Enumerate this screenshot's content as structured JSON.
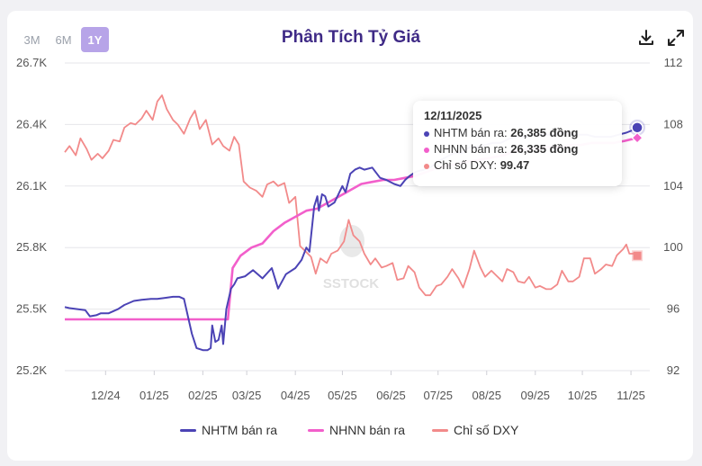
{
  "colors": {
    "nhtm": "#4b43b5",
    "nhnn": "#f25fcb",
    "dxy": "#f28a8a",
    "title": "#3f2a86",
    "axis": "#555555"
  },
  "range_buttons": [
    {
      "label": "3M",
      "active": false
    },
    {
      "label": "6M",
      "active": false
    },
    {
      "label": "1Y",
      "active": true
    }
  ],
  "toolbar": {
    "download_icon": "download-icon",
    "fullscreen_icon": "expand-icon"
  },
  "tooltip": {
    "date": "12/11/2025",
    "rows": [
      {
        "label": "NHTM bán ra: ",
        "value": "26,385 đồng"
      },
      {
        "label": "NHNN bán ra: ",
        "value": "26,335 đồng"
      },
      {
        "label": "Chỉ số DXY: ",
        "value": "99.47"
      }
    ]
  },
  "watermark": "SSTOCK",
  "chart_data": {
    "type": "line",
    "title": "Phân Tích Tỷ Giá",
    "x_tick_labels": [
      "12/24",
      "01/25",
      "02/25",
      "03/25",
      "04/25",
      "05/25",
      "06/25",
      "07/25",
      "08/25",
      "09/25",
      "10/25",
      "11/25"
    ],
    "y_left": {
      "ticks": [
        "25.2K",
        "25.5K",
        "25.8K",
        "26.1K",
        "26.4K",
        "26.7K"
      ],
      "range": [
        25200,
        26700
      ]
    },
    "y_right": {
      "ticks": [
        "92",
        "96",
        "100",
        "104",
        "108",
        "112"
      ],
      "range": [
        92,
        112
      ]
    },
    "legend_position": "bottom",
    "x_axis": {
      "start": "2024-11-12",
      "end": "2025-11-20"
    },
    "series": [
      {
        "name": "NHTM bán ra",
        "axis": "left",
        "points": [
          [
            "2024-11-12",
            25510
          ],
          [
            "2024-11-15",
            25505
          ],
          [
            "2024-11-20",
            25500
          ],
          [
            "2024-11-25",
            25495
          ],
          [
            "2024-11-28",
            25465
          ],
          [
            "2024-12-02",
            25470
          ],
          [
            "2024-12-05",
            25480
          ],
          [
            "2024-12-10",
            25480
          ],
          [
            "2024-12-16",
            25500
          ],
          [
            "2024-12-20",
            25520
          ],
          [
            "2024-12-26",
            25540
          ],
          [
            "2024-12-31",
            25545
          ],
          [
            "2025-01-06",
            25550
          ],
          [
            "2025-01-10",
            25550
          ],
          [
            "2025-01-15",
            25555
          ],
          [
            "2025-01-20",
            25560
          ],
          [
            "2025-01-24",
            25560
          ],
          [
            "2025-01-27",
            25550
          ],
          [
            "2025-02-01",
            25380
          ],
          [
            "2025-02-04",
            25310
          ],
          [
            "2025-02-08",
            25300
          ],
          [
            "2025-02-11",
            25300
          ],
          [
            "2025-02-13",
            25310
          ],
          [
            "2025-02-14",
            25420
          ],
          [
            "2025-02-16",
            25340
          ],
          [
            "2025-02-18",
            25350
          ],
          [
            "2025-02-20",
            25420
          ],
          [
            "2025-02-21",
            25330
          ],
          [
            "2025-02-23",
            25500
          ],
          [
            "2025-02-26",
            25600
          ],
          [
            "2025-02-28",
            25620
          ],
          [
            "2025-03-02",
            25650
          ],
          [
            "2025-03-07",
            25660
          ],
          [
            "2025-03-12",
            25690
          ],
          [
            "2025-03-18",
            25650
          ],
          [
            "2025-03-24",
            25700
          ],
          [
            "2025-03-28",
            25600
          ],
          [
            "2025-04-02",
            25670
          ],
          [
            "2025-04-08",
            25700
          ],
          [
            "2025-04-12",
            25740
          ],
          [
            "2025-04-15",
            25800
          ],
          [
            "2025-04-17",
            25780
          ],
          [
            "2025-04-20",
            26000
          ],
          [
            "2025-04-22",
            26050
          ],
          [
            "2025-04-23",
            25980
          ],
          [
            "2025-04-25",
            26060
          ],
          [
            "2025-04-27",
            26050
          ],
          [
            "2025-04-29",
            26000
          ],
          [
            "2025-05-03",
            26020
          ],
          [
            "2025-05-08",
            26100
          ],
          [
            "2025-05-10",
            26070
          ],
          [
            "2025-05-13",
            26160
          ],
          [
            "2025-05-16",
            26180
          ],
          [
            "2025-05-19",
            26190
          ],
          [
            "2025-05-22",
            26180
          ],
          [
            "2025-05-27",
            26190
          ],
          [
            "2025-06-01",
            26140
          ],
          [
            "2025-06-05",
            26130
          ],
          [
            "2025-06-10",
            26110
          ],
          [
            "2025-06-14",
            26100
          ],
          [
            "2025-06-17",
            26130
          ],
          [
            "2025-06-20",
            26150
          ],
          [
            "2025-06-24",
            26170
          ],
          [
            "2025-06-29",
            26180
          ],
          [
            "2025-07-03",
            26190
          ],
          [
            "2025-07-08",
            26220
          ],
          [
            "2025-07-13",
            26240
          ],
          [
            "2025-07-18",
            26260
          ],
          [
            "2025-07-23",
            26260
          ],
          [
            "2025-07-28",
            26290
          ],
          [
            "2025-08-02",
            26290
          ],
          [
            "2025-08-07",
            26300
          ],
          [
            "2025-08-12",
            26310
          ],
          [
            "2025-08-17",
            26310
          ],
          [
            "2025-08-22",
            26330
          ],
          [
            "2025-08-27",
            26340
          ],
          [
            "2025-09-01",
            26340
          ],
          [
            "2025-09-06",
            26350
          ],
          [
            "2025-09-11",
            26350
          ],
          [
            "2025-09-16",
            26350
          ],
          [
            "2025-09-21",
            26350
          ],
          [
            "2025-09-26",
            26360
          ],
          [
            "2025-10-01",
            26350
          ],
          [
            "2025-10-06",
            26350
          ],
          [
            "2025-10-11",
            26350
          ],
          [
            "2025-10-16",
            26340
          ],
          [
            "2025-10-21",
            26340
          ],
          [
            "2025-10-26",
            26340
          ],
          [
            "2025-10-31",
            26350
          ],
          [
            "2025-11-05",
            26360
          ],
          [
            "2025-11-10",
            26375
          ],
          [
            "2025-11-12",
            26385
          ]
        ]
      },
      {
        "name": "NHNN bán ra",
        "axis": "left",
        "points": [
          [
            "2024-11-12",
            25450
          ],
          [
            "2024-12-01",
            25450
          ],
          [
            "2024-12-31",
            25450
          ],
          [
            "2025-01-31",
            25450
          ],
          [
            "2025-02-24",
            25450
          ],
          [
            "2025-02-27",
            25700
          ],
          [
            "2025-03-04",
            25760
          ],
          [
            "2025-03-11",
            25800
          ],
          [
            "2025-03-18",
            25820
          ],
          [
            "2025-03-25",
            25880
          ],
          [
            "2025-04-01",
            25920
          ],
          [
            "2025-04-08",
            25950
          ],
          [
            "2025-04-15",
            25980
          ],
          [
            "2025-04-22",
            25990
          ],
          [
            "2025-04-29",
            26020
          ],
          [
            "2025-05-06",
            26050
          ],
          [
            "2025-05-13",
            26080
          ],
          [
            "2025-05-20",
            26110
          ],
          [
            "2025-05-27",
            26120
          ],
          [
            "2025-06-03",
            26130
          ],
          [
            "2025-06-10",
            26130
          ],
          [
            "2025-06-17",
            26140
          ],
          [
            "2025-06-24",
            26150
          ],
          [
            "2025-07-01",
            26170
          ],
          [
            "2025-07-08",
            26190
          ],
          [
            "2025-07-15",
            26200
          ],
          [
            "2025-07-22",
            26210
          ],
          [
            "2025-07-29",
            26220
          ],
          [
            "2025-08-05",
            26230
          ],
          [
            "2025-08-12",
            26240
          ],
          [
            "2025-08-19",
            26250
          ],
          [
            "2025-08-26",
            26270
          ],
          [
            "2025-09-02",
            26280
          ],
          [
            "2025-09-09",
            26280
          ],
          [
            "2025-09-16",
            26290
          ],
          [
            "2025-09-23",
            26290
          ],
          [
            "2025-09-30",
            26300
          ],
          [
            "2025-10-07",
            26300
          ],
          [
            "2025-10-14",
            26310
          ],
          [
            "2025-10-21",
            26310
          ],
          [
            "2025-10-28",
            26310
          ],
          [
            "2025-11-04",
            26320
          ],
          [
            "2025-11-12",
            26335
          ]
        ]
      },
      {
        "name": "Chỉ số DXY",
        "axis": "right",
        "points": [
          [
            "2024-11-12",
            106.2
          ],
          [
            "2024-11-15",
            106.6
          ],
          [
            "2024-11-19",
            106.0
          ],
          [
            "2024-11-22",
            107.1
          ],
          [
            "2024-11-26",
            106.4
          ],
          [
            "2024-11-29",
            105.7
          ],
          [
            "2024-12-03",
            106.1
          ],
          [
            "2024-12-06",
            105.8
          ],
          [
            "2024-12-10",
            106.3
          ],
          [
            "2024-12-13",
            107.0
          ],
          [
            "2024-12-17",
            106.9
          ],
          [
            "2024-12-20",
            107.8
          ],
          [
            "2024-12-24",
            108.1
          ],
          [
            "2024-12-27",
            108.0
          ],
          [
            "2024-12-31",
            108.4
          ],
          [
            "2025-01-03",
            108.9
          ],
          [
            "2025-01-07",
            108.3
          ],
          [
            "2025-01-10",
            109.5
          ],
          [
            "2025-01-13",
            109.9
          ],
          [
            "2025-01-16",
            109.0
          ],
          [
            "2025-01-20",
            108.3
          ],
          [
            "2025-01-23",
            108.0
          ],
          [
            "2025-01-27",
            107.4
          ],
          [
            "2025-01-31",
            108.4
          ],
          [
            "2025-02-03",
            108.9
          ],
          [
            "2025-02-06",
            107.7
          ],
          [
            "2025-02-10",
            108.3
          ],
          [
            "2025-02-14",
            106.7
          ],
          [
            "2025-02-18",
            107.1
          ],
          [
            "2025-02-21",
            106.6
          ],
          [
            "2025-02-25",
            106.3
          ],
          [
            "2025-02-28",
            107.2
          ],
          [
            "2025-03-03",
            106.7
          ],
          [
            "2025-03-06",
            104.3
          ],
          [
            "2025-03-10",
            103.9
          ],
          [
            "2025-03-14",
            103.7
          ],
          [
            "2025-03-18",
            103.3
          ],
          [
            "2025-03-21",
            104.1
          ],
          [
            "2025-03-25",
            104.3
          ],
          [
            "2025-03-28",
            104.0
          ],
          [
            "2025-04-01",
            104.2
          ],
          [
            "2025-04-04",
            102.9
          ],
          [
            "2025-04-08",
            103.3
          ],
          [
            "2025-04-11",
            100.1
          ],
          [
            "2025-04-15",
            99.7
          ],
          [
            "2025-04-18",
            99.4
          ],
          [
            "2025-04-21",
            98.3
          ],
          [
            "2025-04-24",
            99.3
          ],
          [
            "2025-04-28",
            99.0
          ],
          [
            "2025-05-01",
            99.6
          ],
          [
            "2025-05-05",
            99.8
          ],
          [
            "2025-05-09",
            100.4
          ],
          [
            "2025-05-12",
            101.8
          ],
          [
            "2025-05-15",
            100.8
          ],
          [
            "2025-05-19",
            100.4
          ],
          [
            "2025-05-22",
            99.6
          ],
          [
            "2025-05-26",
            98.9
          ],
          [
            "2025-05-29",
            99.3
          ],
          [
            "2025-06-02",
            98.7
          ],
          [
            "2025-06-05",
            98.8
          ],
          [
            "2025-06-09",
            99.0
          ],
          [
            "2025-06-12",
            97.9
          ],
          [
            "2025-06-16",
            98.0
          ],
          [
            "2025-06-19",
            98.8
          ],
          [
            "2025-06-23",
            98.4
          ],
          [
            "2025-06-26",
            97.4
          ],
          [
            "2025-06-30",
            96.9
          ],
          [
            "2025-07-03",
            96.9
          ],
          [
            "2025-07-07",
            97.5
          ],
          [
            "2025-07-10",
            97.6
          ],
          [
            "2025-07-14",
            98.1
          ],
          [
            "2025-07-17",
            98.6
          ],
          [
            "2025-07-21",
            98.0
          ],
          [
            "2025-07-24",
            97.4
          ],
          [
            "2025-07-28",
            98.6
          ],
          [
            "2025-07-31",
            99.8
          ],
          [
            "2025-08-04",
            98.7
          ],
          [
            "2025-08-07",
            98.1
          ],
          [
            "2025-08-11",
            98.5
          ],
          [
            "2025-08-14",
            98.2
          ],
          [
            "2025-08-18",
            97.8
          ],
          [
            "2025-08-21",
            98.6
          ],
          [
            "2025-08-25",
            98.4
          ],
          [
            "2025-08-28",
            97.8
          ],
          [
            "2025-09-01",
            97.7
          ],
          [
            "2025-09-04",
            98.1
          ],
          [
            "2025-09-08",
            97.4
          ],
          [
            "2025-09-11",
            97.5
          ],
          [
            "2025-09-15",
            97.3
          ],
          [
            "2025-09-18",
            97.3
          ],
          [
            "2025-09-22",
            97.6
          ],
          [
            "2025-09-25",
            98.5
          ],
          [
            "2025-09-29",
            97.8
          ],
          [
            "2025-10-02",
            97.8
          ],
          [
            "2025-10-06",
            98.1
          ],
          [
            "2025-10-09",
            99.3
          ],
          [
            "2025-10-13",
            99.3
          ],
          [
            "2025-10-16",
            98.3
          ],
          [
            "2025-10-20",
            98.6
          ],
          [
            "2025-10-23",
            98.9
          ],
          [
            "2025-10-27",
            98.8
          ],
          [
            "2025-10-30",
            99.5
          ],
          [
            "2025-11-03",
            99.9
          ],
          [
            "2025-11-05",
            100.2
          ],
          [
            "2025-11-07",
            99.6
          ],
          [
            "2025-11-10",
            99.6
          ],
          [
            "2025-11-12",
            99.47
          ]
        ]
      }
    ]
  }
}
